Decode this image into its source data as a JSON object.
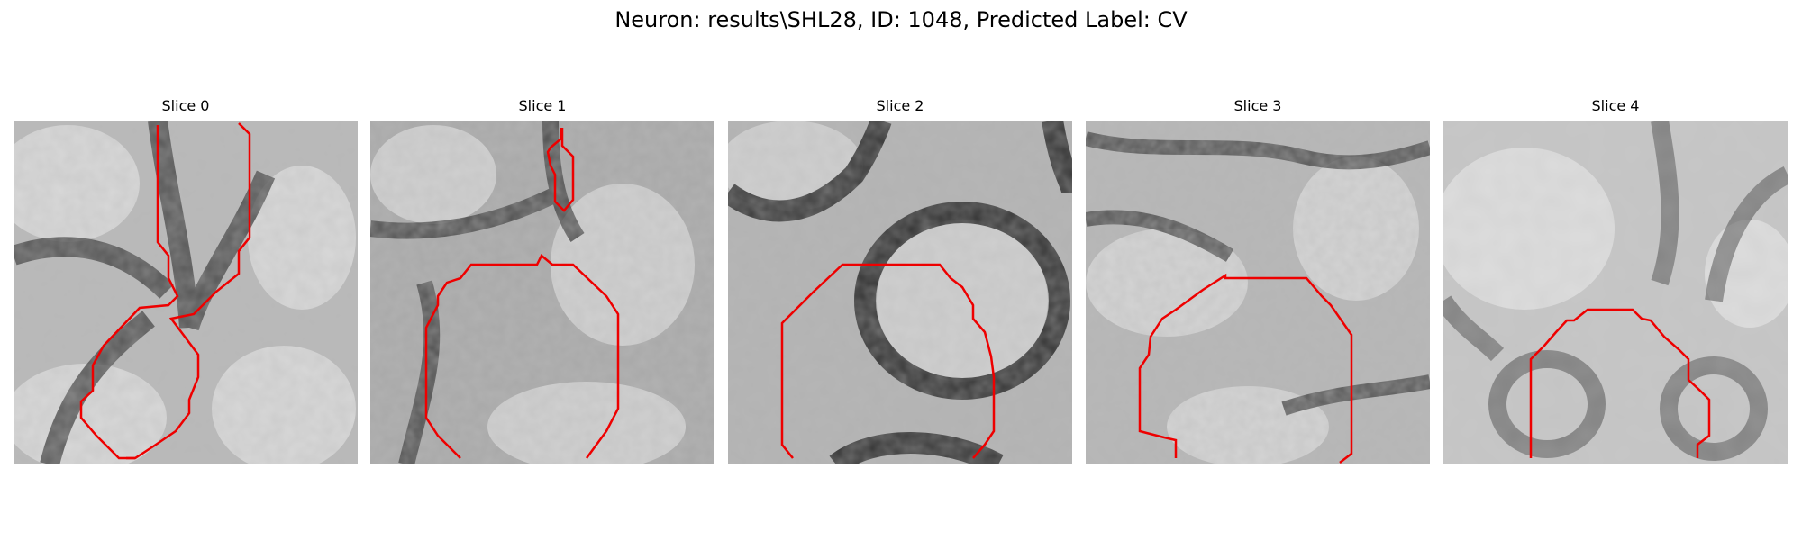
{
  "figure": {
    "title": "Neuron: results\\SHL28, ID: 1048, Predicted Label: CV"
  },
  "panels": [
    {
      "title": "Slice 0",
      "image_desc": "grayscale EM patch with red cell-boundary contour"
    },
    {
      "title": "Slice 1",
      "image_desc": "grayscale EM patch with red cell-boundary contour"
    },
    {
      "title": "Slice 2",
      "image_desc": "grayscale EM patch with dark ring-shaped membrane and red contour"
    },
    {
      "title": "Slice 3",
      "image_desc": "grayscale EM patch with red octagonal contour"
    },
    {
      "title": "Slice 4",
      "image_desc": "blurred grayscale EM patch with red arch contour"
    }
  ],
  "colors": {
    "contour": "#ee0000",
    "background": "#ffffff"
  }
}
